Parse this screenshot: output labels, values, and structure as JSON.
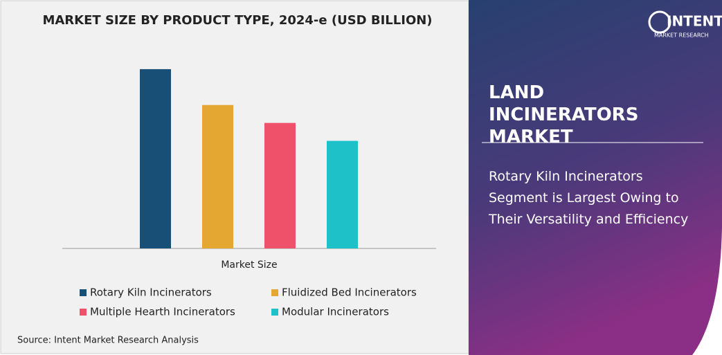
{
  "chart_data": {
    "type": "bar",
    "title": "MARKET SIZE BY PRODUCT TYPE, 2024-e (USD BILLION)",
    "x_label": "Market Size",
    "categories": [
      "Market Size"
    ],
    "series": [
      {
        "name": "Rotary Kiln Incinerators",
        "color": "#184f77",
        "values": [
          2.6
        ]
      },
      {
        "name": "Fluidized Bed Incinerators",
        "color": "#e4a832",
        "values": [
          2.08
        ]
      },
      {
        "name": "Multiple Hearth Incinerators",
        "color": "#ef506a",
        "values": [
          1.82
        ]
      },
      {
        "name": "Modular Incinerators",
        "color": "#1fc1c9",
        "values": [
          1.56
        ]
      }
    ],
    "ylim": [
      0,
      2.8
    ],
    "legend": "bottom"
  },
  "source": "Source: Intent Market Research Analysis",
  "logo": {
    "name": "INTENT",
    "tagline": "MARKET RESEARCH"
  },
  "panel": {
    "title": "LAND INCINERATORS MARKET",
    "summary": "Rotary Kiln Incinerators Segment is Largest Owing to Their Versatility and Efficiency"
  }
}
